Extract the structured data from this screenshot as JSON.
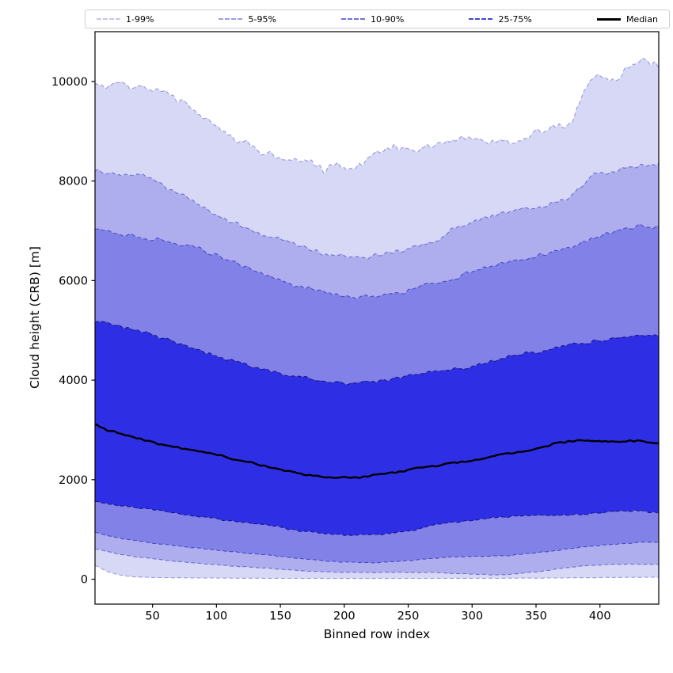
{
  "figure": {
    "legend": {
      "items": [
        {
          "label": "1-99%",
          "color": "#c6c6ef",
          "style": "dashed"
        },
        {
          "label": "5-95%",
          "color": "#9c9ce8",
          "style": "dashed"
        },
        {
          "label": "10-90%",
          "color": "#7070dd",
          "style": "dashed"
        },
        {
          "label": "25-75%",
          "color": "#4646cf",
          "style": "dashed"
        },
        {
          "label": "Median",
          "color": "#000000",
          "style": "solid"
        }
      ]
    },
    "x_axis": {
      "label": "Binned row index",
      "ticks": [
        50,
        100,
        150,
        200,
        250,
        300,
        350,
        400
      ]
    },
    "y_axis": {
      "label": "Cloud height (CRB) [m]",
      "ticks": [
        0,
        2000,
        4000,
        6000,
        8000,
        10000
      ]
    }
  },
  "chart_data": {
    "type": "area",
    "title": "",
    "xlabel": "Binned row index",
    "ylabel": "Cloud height (CRB) [m]",
    "xlim": [
      5,
      446
    ],
    "ylim": [
      -500,
      11000
    ],
    "grid": false,
    "legend_position": "top, horizontal, outside axes",
    "x": [
      5,
      15,
      25,
      35,
      45,
      55,
      65,
      75,
      85,
      95,
      105,
      115,
      125,
      135,
      145,
      155,
      165,
      175,
      185,
      195,
      205,
      215,
      225,
      235,
      245,
      255,
      265,
      275,
      285,
      295,
      305,
      315,
      325,
      335,
      345,
      355,
      365,
      375,
      385,
      395,
      405,
      415,
      425,
      435,
      446
    ],
    "series": [
      {
        "name": "p1",
        "percentile": 1,
        "values": [
          280,
          150,
          80,
          48,
          38,
          33,
          30,
          28,
          26,
          24,
          22,
          21,
          20,
          19,
          18,
          18,
          17,
          16,
          16,
          15,
          15,
          15,
          15,
          15,
          15,
          16,
          16,
          17,
          17,
          18,
          18,
          19,
          20,
          21,
          22,
          24,
          26,
          28,
          30,
          32,
          34,
          36,
          37,
          38,
          40
        ]
      },
      {
        "name": "p5",
        "percentile": 5,
        "values": [
          620,
          555,
          500,
          460,
          425,
          395,
          370,
          345,
          320,
          300,
          280,
          262,
          245,
          228,
          210,
          192,
          172,
          160,
          150,
          143,
          138,
          135,
          135,
          137,
          140,
          140,
          138,
          130,
          120,
          110,
          100,
          88,
          90,
          110,
          135,
          160,
          200,
          235,
          260,
          280,
          295,
          300,
          305,
          300,
          300
        ]
      },
      {
        "name": "p10",
        "percentile": 10,
        "values": [
          950,
          880,
          820,
          780,
          745,
          710,
          680,
          650,
          625,
          600,
          575,
          550,
          520,
          495,
          470,
          440,
          415,
          390,
          370,
          350,
          340,
          335,
          338,
          345,
          365,
          385,
          410,
          430,
          445,
          455,
          460,
          462,
          470,
          490,
          520,
          545,
          570,
          610,
          645,
          665,
          690,
          710,
          730,
          745,
          745
        ]
      },
      {
        "name": "p25",
        "percentile": 25,
        "values": [
          1560,
          1510,
          1470,
          1440,
          1410,
          1380,
          1340,
          1300,
          1260,
          1240,
          1200,
          1170,
          1140,
          1100,
          1060,
          1020,
          975,
          940,
          915,
          905,
          890,
          895,
          900,
          920,
          950,
          990,
          1060,
          1110,
          1140,
          1170,
          1200,
          1230,
          1255,
          1265,
          1275,
          1285,
          1290,
          1295,
          1300,
          1330,
          1350,
          1360,
          1380,
          1370,
          1330
        ]
      },
      {
        "name": "p50",
        "percentile": 50,
        "values": [
          3100,
          3000,
          2930,
          2860,
          2790,
          2720,
          2670,
          2630,
          2580,
          2530,
          2470,
          2400,
          2350,
          2290,
          2240,
          2180,
          2120,
          2080,
          2060,
          2050,
          2040,
          2060,
          2090,
          2130,
          2170,
          2220,
          2260,
          2300,
          2330,
          2360,
          2400,
          2460,
          2520,
          2550,
          2590,
          2650,
          2720,
          2770,
          2790,
          2780,
          2770,
          2760,
          2780,
          2770,
          2710
        ]
      },
      {
        "name": "p75",
        "percentile": 75,
        "values": [
          5200,
          5140,
          5080,
          5020,
          4950,
          4870,
          4780,
          4700,
          4610,
          4530,
          4450,
          4370,
          4300,
          4230,
          4170,
          4120,
          4060,
          4010,
          3970,
          3950,
          3940,
          3950,
          3980,
          4010,
          4060,
          4110,
          4160,
          4190,
          4220,
          4250,
          4300,
          4380,
          4450,
          4510,
          4550,
          4590,
          4640,
          4700,
          4740,
          4770,
          4800,
          4850,
          4880,
          4870,
          4900
        ]
      },
      {
        "name": "p90",
        "percentile": 90,
        "values": [
          7060,
          7000,
          6950,
          6900,
          6850,
          6800,
          6750,
          6700,
          6650,
          6550,
          6450,
          6350,
          6250,
          6150,
          6050,
          5960,
          5880,
          5820,
          5760,
          5700,
          5650,
          5670,
          5690,
          5730,
          5760,
          5820,
          5940,
          5960,
          6030,
          6130,
          6230,
          6290,
          6340,
          6400,
          6450,
          6510,
          6570,
          6640,
          6720,
          6870,
          6940,
          7010,
          7060,
          7090,
          7080
        ]
      },
      {
        "name": "p95",
        "percentile": 95,
        "values": [
          8220,
          8160,
          8130,
          8120,
          8100,
          7950,
          7820,
          7700,
          7520,
          7380,
          7250,
          7130,
          7030,
          6950,
          6880,
          6800,
          6700,
          6620,
          6550,
          6490,
          6470,
          6460,
          6500,
          6550,
          6620,
          6680,
          6740,
          6850,
          7050,
          7120,
          7200,
          7300,
          7360,
          7410,
          7450,
          7500,
          7560,
          7650,
          7900,
          8140,
          8180,
          8230,
          8290,
          8350,
          8330
        ]
      },
      {
        "name": "p99",
        "percentile": 99,
        "values": [
          9980,
          9900,
          9950,
          9880,
          9930,
          9800,
          9720,
          9550,
          9380,
          9180,
          9000,
          8880,
          8780,
          8550,
          8480,
          8430,
          8410,
          8350,
          8220,
          8300,
          8280,
          8350,
          8570,
          8640,
          8680,
          8580,
          8700,
          8780,
          8830,
          8870,
          8880,
          8760,
          8800,
          8720,
          8900,
          9000,
          9120,
          9080,
          9600,
          10150,
          10000,
          10080,
          10350,
          10450,
          10340
        ]
      }
    ],
    "bands": [
      {
        "name": "1-99%",
        "low": "p1",
        "high": "p99",
        "fill": "#d7d7f6"
      },
      {
        "name": "5-95%",
        "low": "p5",
        "high": "p95",
        "fill": "#aeaeee"
      },
      {
        "name": "10-90%",
        "low": "p10",
        "high": "p90",
        "fill": "#8181e7"
      },
      {
        "name": "25-75%",
        "low": "p25",
        "high": "p75",
        "fill": "#2e2ee5"
      }
    ],
    "median_series": "p50"
  },
  "style": {
    "edge_colors": {
      "p1": "#9a9ade",
      "p99": "#9a9ade",
      "p5": "#6f6fd2",
      "p95": "#6f6fd2",
      "p10": "#4a4ac4",
      "p90": "#4a4ac4",
      "p25": "#181884",
      "p75": "#181884"
    },
    "median_color": "#000000",
    "axis_color": "#000000",
    "noise_amp": {
      "p1": 3,
      "p5": 7,
      "p10": 10,
      "p25": 18,
      "p50": 16,
      "p75": 32,
      "p90": 38,
      "p95": 45,
      "p99": 75
    }
  }
}
